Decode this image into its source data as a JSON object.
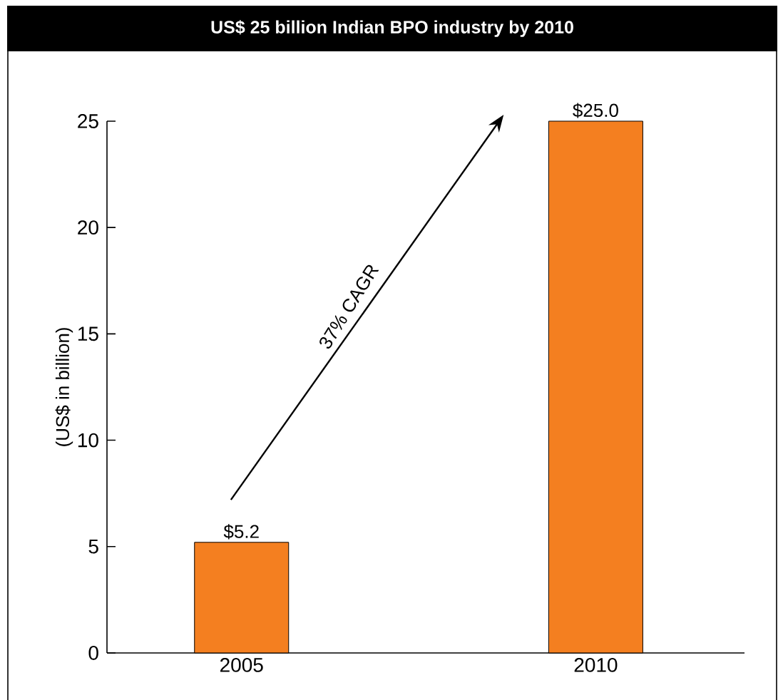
{
  "chart_data": {
    "type": "bar",
    "title": "US$ 25 billion Indian BPO industry by 2010",
    "ylabel": "(US$ in billion)",
    "categories": [
      "2005",
      "2010"
    ],
    "values": [
      5.2,
      25.0
    ],
    "value_labels": [
      "$5.2",
      "$25.0"
    ],
    "color": "#f47f20",
    "ylim": [
      0,
      25
    ],
    "yticks": [
      0,
      5,
      10,
      15,
      20,
      25
    ],
    "annotations": [
      "37% CAGR"
    ]
  }
}
